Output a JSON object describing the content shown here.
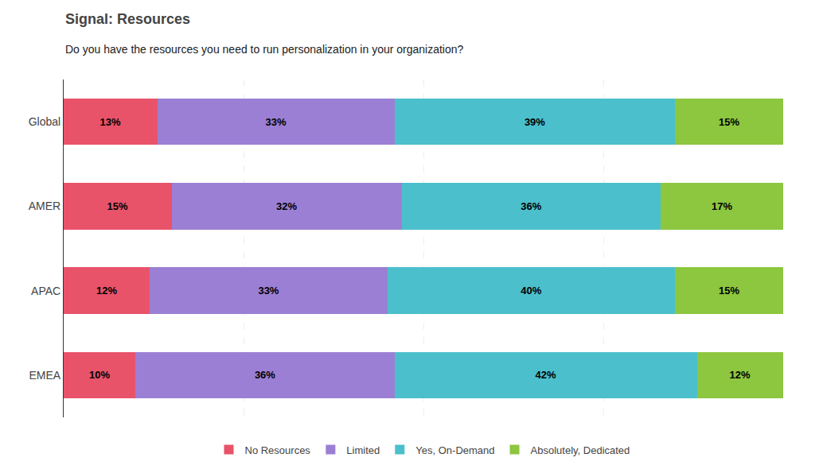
{
  "chart_data": {
    "type": "bar",
    "orientation": "horizontal",
    "stacked": true,
    "title": "Signal: Resources",
    "subtitle": "Do you have the resources you need to run personalization in your organization?",
    "categories": [
      "Global",
      "AMER",
      "APAC",
      "EMEA"
    ],
    "series": [
      {
        "name": "No Resources",
        "color": "#e8536a",
        "values": [
          13,
          15,
          12,
          10
        ],
        "value_labels": [
          "13%",
          "15%",
          "12%",
          "10%"
        ]
      },
      {
        "name": "Limited",
        "color": "#9b7fd4",
        "values": [
          33,
          32,
          33,
          36
        ],
        "value_labels": [
          "33%",
          "32%",
          "33%",
          "36%"
        ]
      },
      {
        "name": "Yes, On-Demand",
        "color": "#4bbfcc",
        "values": [
          39,
          36,
          40,
          42
        ],
        "value_labels": [
          "39%",
          "36%",
          "40%",
          "42%"
        ]
      },
      {
        "name": "Absolutely, Dedicated",
        "color": "#8dc63f",
        "values": [
          15,
          17,
          15,
          12
        ],
        "value_labels": [
          "15%",
          "17%",
          "15%",
          "12%"
        ]
      }
    ],
    "xlim": [
      0,
      100
    ],
    "xticks": [
      0,
      25,
      50,
      75,
      100
    ],
    "grid": true,
    "tick_labels": "y",
    "data_labels": true,
    "legend": "bottom"
  }
}
